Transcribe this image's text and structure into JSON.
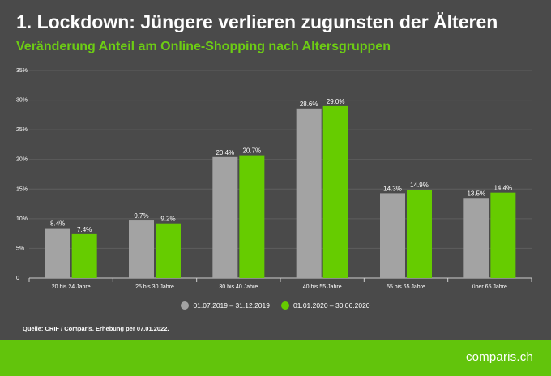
{
  "header": {
    "title": "1. Lockdown: Jüngere verlieren zugunsten der Älteren",
    "subtitle": "Veränderung Anteil am Online-Shopping nach Altersgruppen"
  },
  "chart_data": {
    "type": "bar",
    "categories": [
      "20 bis 24 Jahre",
      "25 bis 30 Jahre",
      "30 bis 40 Jahre",
      "40 bis 55 Jahre",
      "55 bis 65 Jahre",
      "über 65 Jahre"
    ],
    "series": [
      {
        "name": "01.07.2019 – 31.12.2019",
        "color": "#a3a3a3",
        "values": [
          8.4,
          9.7,
          20.4,
          28.6,
          14.3,
          13.5
        ],
        "labels": [
          "8.4%",
          "9.7%",
          "20.4%",
          "28.6%",
          "14.3%",
          "13.5%"
        ]
      },
      {
        "name": "01.01.2020 – 30.06.2020",
        "color": "#66cc00",
        "values": [
          7.4,
          9.2,
          20.7,
          29.0,
          14.9,
          14.4
        ],
        "labels": [
          "7.4%",
          "9.2%",
          "20.7%",
          "29.0%",
          "14.9%",
          "14.4%"
        ]
      }
    ],
    "ylim": [
      0,
      35
    ],
    "yticks": [
      0,
      5,
      10,
      15,
      20,
      25,
      30,
      35
    ],
    "ytick_labels": [
      "0",
      "5%",
      "10%",
      "15%",
      "20%",
      "25%",
      "30%",
      "35%"
    ],
    "grid": true,
    "legend_position": "bottom-center"
  },
  "source": "Quelle: CRIF / Comparis. Erhebung per 07.01.2022.",
  "footer": {
    "logo": "comparis.ch",
    "brand_color": "#62c40c"
  }
}
